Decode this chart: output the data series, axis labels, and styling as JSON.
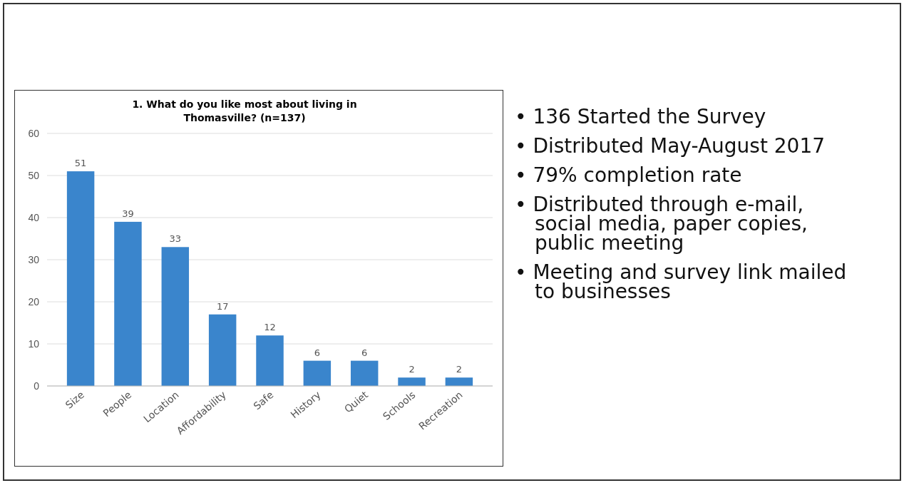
{
  "chart_data": [
    {
      "type": "bar",
      "title": "1. What do you like most about living in Thomasville? (n=137)",
      "categories": [
        "Size",
        "People",
        "Location",
        "Affordability",
        "Safe",
        "History",
        "Quiet",
        "Schools",
        "Recreation"
      ],
      "values": [
        51,
        39,
        33,
        17,
        12,
        6,
        6,
        2,
        2
      ],
      "color": "#3a85cc",
      "ylim": [
        0,
        60
      ],
      "yticks": [
        0,
        10,
        20,
        30,
        40,
        50,
        60
      ],
      "grid": "y",
      "data_labels": true
    },
    {
      "type": "other",
      "annotations": [
        "• 136 Started the Survey",
        "• Distributed May-August 2017",
        "• 79% completion rate",
        "• Distributed through e-mail, social media, paper copies, public meeting",
        "• Meeting and survey link mailed to businesses"
      ]
    }
  ]
}
